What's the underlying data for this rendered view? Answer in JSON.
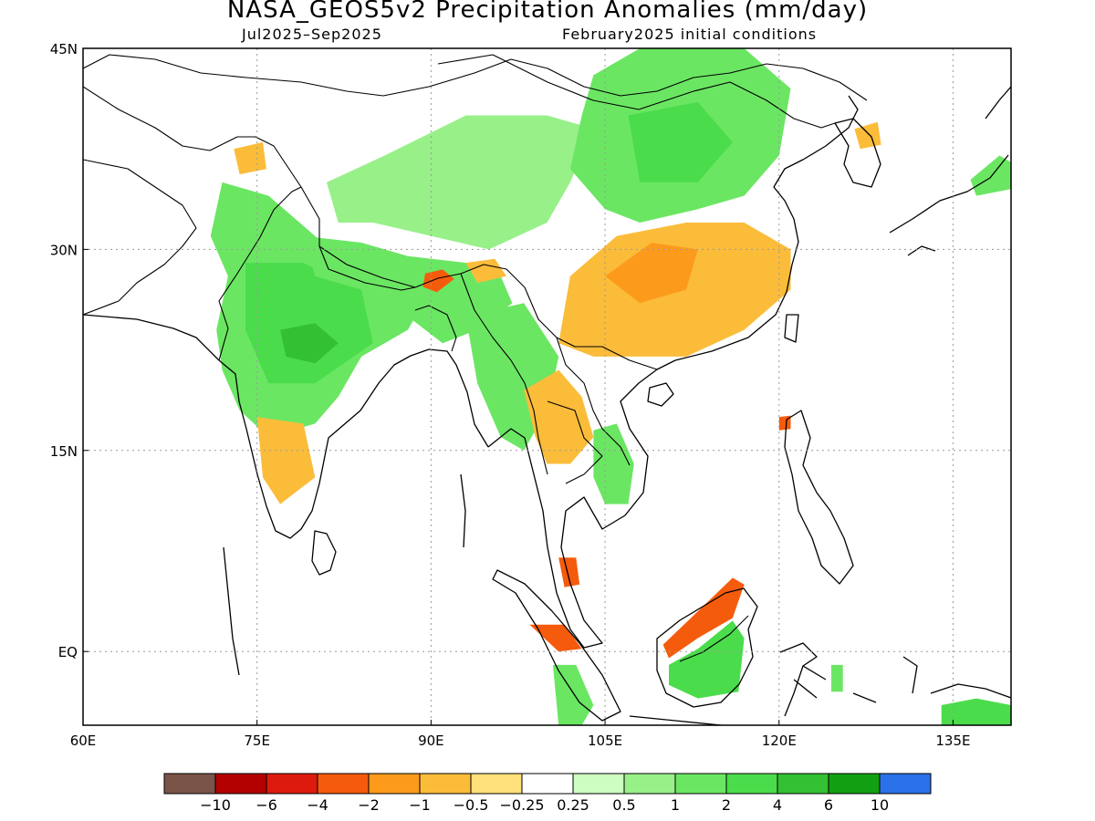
{
  "title": "NASA_GEOS5v2 Precipitation Anomalies (mm/day)",
  "subtitle_left": "Jul2025–Sep2025",
  "subtitle_right": "February2025 initial conditions",
  "map": {
    "lon_range": [
      60,
      140
    ],
    "lat_range": [
      -5.5,
      45
    ],
    "x_ticks": [
      {
        "value": 60,
        "label": "60E"
      },
      {
        "value": 75,
        "label": "75E"
      },
      {
        "value": 90,
        "label": "90E"
      },
      {
        "value": 105,
        "label": "105E"
      },
      {
        "value": 120,
        "label": "120E"
      },
      {
        "value": 135,
        "label": "135E"
      }
    ],
    "y_ticks": [
      {
        "value": 45,
        "label": "45N"
      },
      {
        "value": 30,
        "label": "30N"
      },
      {
        "value": 15,
        "label": "15N"
      },
      {
        "value": 0,
        "label": "EQ"
      }
    ],
    "gridlines": "dotted"
  },
  "colorbar": {
    "colors": [
      "#7a5448",
      "#b30000",
      "#dd1a0e",
      "#f55b0c",
      "#fc9b1b",
      "#fbbc3a",
      "#ffe07a",
      "#ffffff",
      "#cdfdc0",
      "#98f089",
      "#6be663",
      "#4bdc4c",
      "#33c033",
      "#12a012",
      "#2a70e8"
    ],
    "labels": [
      "−10",
      "−6",
      "−4",
      "−2",
      "−1",
      "−0.5",
      "−0.25",
      "0.25",
      "0.5",
      "1",
      "2",
      "4",
      "6",
      "10"
    ]
  },
  "regions": [
    {
      "name": "pakistan-gilgit-dry",
      "level": -1,
      "points": [
        [
          73,
          37.5
        ],
        [
          75.5,
          38
        ],
        [
          75.8,
          36
        ],
        [
          73.5,
          35.6
        ]
      ]
    },
    {
      "name": "northwest-india-wet",
      "level": 1,
      "points": [
        [
          72,
          35
        ],
        [
          76,
          34
        ],
        [
          80,
          31
        ],
        [
          83,
          29
        ],
        [
          88,
          28
        ],
        [
          90,
          27
        ],
        [
          88,
          24
        ],
        [
          84,
          22
        ],
        [
          82,
          19
        ],
        [
          80,
          17
        ],
        [
          76,
          16
        ],
        [
          73.5,
          18
        ],
        [
          72,
          21
        ],
        [
          71.5,
          24
        ],
        [
          72.5,
          28
        ],
        [
          71,
          31
        ]
      ]
    },
    {
      "name": "central-india-wet",
      "level": 2,
      "points": [
        [
          74,
          29
        ],
        [
          79,
          29
        ],
        [
          84,
          27
        ],
        [
          85,
          23
        ],
        [
          80,
          20
        ],
        [
          76,
          20
        ],
        [
          74,
          24
        ]
      ]
    },
    {
      "name": "central-india-core",
      "level": 4,
      "points": [
        [
          77,
          24
        ],
        [
          80,
          24.5
        ],
        [
          82,
          23
        ],
        [
          80,
          21.5
        ],
        [
          77.5,
          22
        ]
      ]
    },
    {
      "name": "south-india-dry",
      "level": -1,
      "points": [
        [
          75,
          17.5
        ],
        [
          79,
          17
        ],
        [
          80,
          13
        ],
        [
          77,
          11
        ],
        [
          75.5,
          13
        ]
      ]
    },
    {
      "name": "tibet-wet",
      "level": 0.5,
      "points": [
        [
          81,
          35
        ],
        [
          86,
          37
        ],
        [
          93,
          40
        ],
        [
          100,
          40
        ],
        [
          104,
          39
        ],
        [
          102,
          35
        ],
        [
          100,
          32
        ],
        [
          95,
          30
        ],
        [
          90,
          31
        ],
        [
          85,
          32
        ],
        [
          82,
          32
        ]
      ]
    },
    {
      "name": "himalaya-wet",
      "level": 1,
      "points": [
        [
          79,
          31
        ],
        [
          84,
          30.5
        ],
        [
          88,
          29.5
        ],
        [
          93,
          29
        ],
        [
          96,
          28
        ],
        [
          97,
          26
        ],
        [
          94,
          24
        ],
        [
          91,
          23
        ],
        [
          88,
          25
        ],
        [
          84,
          27
        ],
        [
          80,
          28
        ]
      ]
    },
    {
      "name": "bhutan-dry",
      "level": -4,
      "points": [
        [
          89.5,
          28.2
        ],
        [
          91,
          28.5
        ],
        [
          92,
          27.8
        ],
        [
          90.5,
          26.8
        ],
        [
          89.3,
          27.2
        ]
      ]
    },
    {
      "name": "arunachal-dry",
      "level": -1,
      "points": [
        [
          93,
          29
        ],
        [
          95.5,
          29.3
        ],
        [
          96.5,
          28
        ],
        [
          94,
          27.5
        ]
      ]
    },
    {
      "name": "myanmar-wet",
      "level": 1,
      "points": [
        [
          93,
          25
        ],
        [
          98,
          26
        ],
        [
          101,
          22
        ],
        [
          100,
          18
        ],
        [
          98,
          15
        ],
        [
          96,
          16
        ],
        [
          94,
          20
        ]
      ]
    },
    {
      "name": "north-china-wet",
      "level": 1,
      "points": [
        [
          104,
          43
        ],
        [
          108,
          45
        ],
        [
          117,
          45
        ],
        [
          121,
          42
        ],
        [
          120,
          37
        ],
        [
          117,
          34
        ],
        [
          113,
          33
        ],
        [
          108,
          32
        ],
        [
          105,
          33
        ],
        [
          102,
          36
        ],
        [
          103,
          40
        ]
      ]
    },
    {
      "name": "north-china-wet-core",
      "level": 2,
      "points": [
        [
          107,
          40
        ],
        [
          113,
          41
        ],
        [
          116,
          38
        ],
        [
          113,
          35
        ],
        [
          108,
          35
        ]
      ]
    },
    {
      "name": "south-china-dry",
      "level": -1,
      "points": [
        [
          102,
          28
        ],
        [
          106,
          31
        ],
        [
          112,
          32
        ],
        [
          117,
          32
        ],
        [
          121,
          30
        ],
        [
          121,
          27
        ],
        [
          117,
          24
        ],
        [
          112,
          22
        ],
        [
          108,
          22
        ],
        [
          104,
          22
        ],
        [
          101,
          23
        ]
      ]
    },
    {
      "name": "south-china-dry-core",
      "level": -2,
      "points": [
        [
          105,
          28
        ],
        [
          109,
          30.5
        ],
        [
          113,
          30
        ],
        [
          112,
          27
        ],
        [
          108,
          26
        ]
      ]
    },
    {
      "name": "korea-dry",
      "level": -1,
      "points": [
        [
          126.5,
          39
        ],
        [
          128.5,
          39.5
        ],
        [
          128.8,
          37.8
        ],
        [
          127,
          37.5
        ]
      ]
    },
    {
      "name": "japan-wet",
      "level": 1,
      "points": [
        [
          136.5,
          35.2
        ],
        [
          139,
          37
        ],
        [
          140,
          36.5
        ],
        [
          140,
          34.5
        ],
        [
          137,
          34
        ]
      ]
    },
    {
      "name": "indochina-dry",
      "level": -1,
      "points": [
        [
          98,
          19.5
        ],
        [
          101,
          21
        ],
        [
          103,
          19
        ],
        [
          104,
          16
        ],
        [
          102,
          14
        ],
        [
          100,
          14
        ],
        [
          99,
          16
        ]
      ]
    },
    {
      "name": "vietnam-wet",
      "level": 1,
      "points": [
        [
          104,
          16.5
        ],
        [
          106,
          17
        ],
        [
          107.5,
          14
        ],
        [
          107,
          11
        ],
        [
          105,
          11
        ],
        [
          104,
          13
        ]
      ]
    },
    {
      "name": "luzon-dry",
      "level": -4,
      "points": [
        [
          120,
          17.5
        ],
        [
          121,
          17.6
        ],
        [
          121,
          16.6
        ],
        [
          120,
          16.5
        ]
      ]
    },
    {
      "name": "malaysia-dry",
      "level": -4,
      "points": [
        [
          101,
          7
        ],
        [
          102.5,
          7
        ],
        [
          102.8,
          5
        ],
        [
          101.5,
          4.8
        ]
      ]
    },
    {
      "name": "sumatra-dry",
      "level": -4,
      "points": [
        [
          98.5,
          2
        ],
        [
          101.5,
          2
        ],
        [
          103,
          0.2
        ],
        [
          101,
          0
        ]
      ]
    },
    {
      "name": "sumatra-wet",
      "level": 1,
      "points": [
        [
          100.5,
          -1
        ],
        [
          102.5,
          -1
        ],
        [
          104,
          -4
        ],
        [
          103,
          -5.5
        ],
        [
          101,
          -5.5
        ]
      ]
    },
    {
      "name": "borneo-dry",
      "level": -4,
      "points": [
        [
          110,
          0.5
        ],
        [
          113,
          3
        ],
        [
          116,
          5.5
        ],
        [
          117,
          5
        ],
        [
          116,
          2.5
        ],
        [
          113,
          1
        ],
        [
          110.5,
          -0.5
        ]
      ]
    },
    {
      "name": "borneo-wet",
      "level": 2,
      "points": [
        [
          110.5,
          -1
        ],
        [
          113,
          0.2
        ],
        [
          116,
          2.3
        ],
        [
          117,
          1
        ],
        [
          116.5,
          -3
        ],
        [
          113,
          -3.5
        ],
        [
          110.5,
          -2.5
        ]
      ]
    },
    {
      "name": "new-guinea-wet",
      "level": 2,
      "points": [
        [
          134,
          -4
        ],
        [
          137,
          -3.5
        ],
        [
          140,
          -4
        ],
        [
          140,
          -5.5
        ],
        [
          134,
          -5.5
        ]
      ]
    },
    {
      "name": "sulawesi-wet",
      "level": 1,
      "points": [
        [
          124.5,
          -1
        ],
        [
          125.5,
          -1
        ],
        [
          125.5,
          -3
        ],
        [
          124.5,
          -3
        ]
      ]
    }
  ]
}
